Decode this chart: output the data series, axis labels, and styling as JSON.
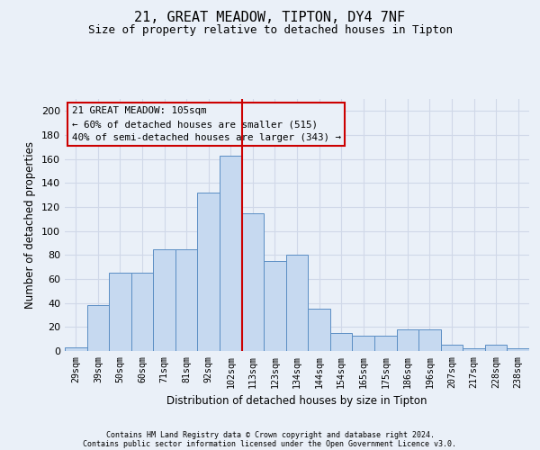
{
  "title1": "21, GREAT MEADOW, TIPTON, DY4 7NF",
  "title2": "Size of property relative to detached houses in Tipton",
  "xlabel": "Distribution of detached houses by size in Tipton",
  "ylabel": "Number of detached properties",
  "bar_labels": [
    "29sqm",
    "39sqm",
    "50sqm",
    "60sqm",
    "71sqm",
    "81sqm",
    "92sqm",
    "102sqm",
    "113sqm",
    "123sqm",
    "134sqm",
    "144sqm",
    "154sqm",
    "165sqm",
    "175sqm",
    "186sqm",
    "196sqm",
    "207sqm",
    "217sqm",
    "228sqm",
    "238sqm"
  ],
  "bar_heights": [
    3,
    38,
    65,
    65,
    85,
    85,
    132,
    163,
    115,
    75,
    80,
    35,
    15,
    13,
    13,
    18,
    18,
    5,
    2,
    5,
    2
  ],
  "bar_color": "#c6d9f0",
  "bar_edge_color": "#5b8ec4",
  "vline_color": "#cc0000",
  "vline_pos": 7.5,
  "annotation_text": "21 GREAT MEADOW: 105sqm\n← 60% of detached houses are smaller (515)\n40% of semi-detached houses are larger (343) →",
  "annotation_box_edgecolor": "#cc0000",
  "footer1": "Contains HM Land Registry data © Crown copyright and database right 2024.",
  "footer2": "Contains public sector information licensed under the Open Government Licence v3.0.",
  "ylim": [
    0,
    210
  ],
  "yticks": [
    0,
    20,
    40,
    60,
    80,
    100,
    120,
    140,
    160,
    180,
    200
  ],
  "background_color": "#eaf0f8",
  "grid_color": "#d0d8e8",
  "title1_fontsize": 11,
  "title2_fontsize": 9
}
